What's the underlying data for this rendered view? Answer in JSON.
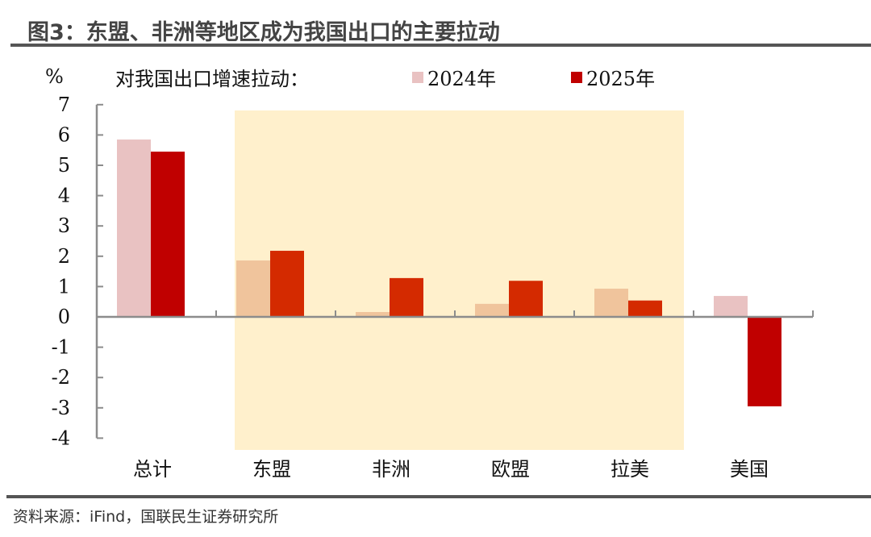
{
  "header": {
    "title": "图3：东盟、非洲等地区成为我国出口的主要拉动"
  },
  "footer": {
    "source": "资料来源：iFind，国联民生证券研究所"
  },
  "chart_data": {
    "type": "bar",
    "title": "图3：东盟、非洲等地区成为我国出口的主要拉动",
    "subtitle": "对我国出口增速拉动：",
    "ylabel": "%",
    "xlabel": "",
    "categories": [
      "总计",
      "东盟",
      "非洲",
      "欧盟",
      "拉美",
      "美国"
    ],
    "series": [
      {
        "name": "2024年",
        "values": [
          5.85,
          1.86,
          0.16,
          0.43,
          0.93,
          0.69
        ]
      },
      {
        "name": "2025年",
        "values": [
          5.45,
          2.18,
          1.28,
          1.19,
          0.54,
          -2.95
        ]
      }
    ],
    "ylim": [
      -4,
      7
    ],
    "yticks": [
      7,
      6,
      5,
      4,
      3,
      2,
      1,
      0,
      -1,
      -2,
      -3,
      -4
    ],
    "grid": false,
    "legend_position": "top",
    "highlight_region": {
      "from": "东盟",
      "to": "拉美",
      "color": "#FFF0CC"
    },
    "colors": {
      "2024_default": "#E9C2C2",
      "2025_default": "#C00000",
      "2024_highlight": "#F0C49C",
      "2025_highlight": "#D42A00",
      "axis": "#8C8C8C"
    }
  }
}
